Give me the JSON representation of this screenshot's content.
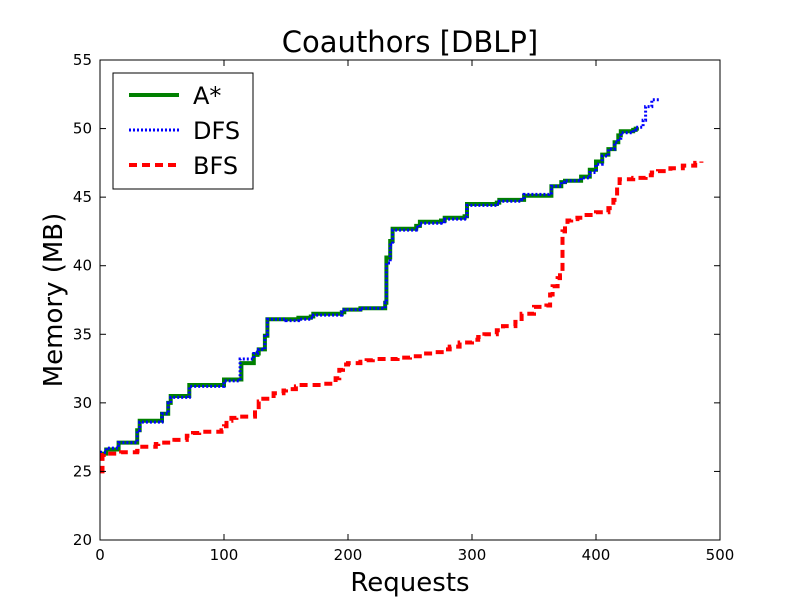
{
  "chart_data": {
    "type": "line",
    "title": "Coauthors [DBLP]",
    "xlabel": "Requests",
    "ylabel": "Memory (MB)",
    "xlim": [
      0,
      500
    ],
    "ylim": [
      20,
      55
    ],
    "xticks": [
      "0",
      "100",
      "200",
      "300",
      "400",
      "500"
    ],
    "yticks": [
      "20",
      "25",
      "30",
      "35",
      "40",
      "45",
      "50",
      "55"
    ],
    "grid": false,
    "legend_position": "top-left",
    "series": [
      {
        "name": "A*",
        "color": "#008000",
        "style": "solid",
        "x": [
          0,
          4,
          5,
          14,
          15,
          28,
          30,
          32,
          47,
          50,
          52,
          55,
          57,
          70,
          72,
          97,
          100,
          112,
          114,
          122,
          124,
          127,
          128,
          133,
          135,
          150,
          160,
          170,
          172,
          185,
          195,
          197,
          210,
          230,
          231,
          234,
          236,
          255,
          258,
          275,
          278,
          294,
          296,
          320,
          322,
          340,
          342,
          362,
          364,
          372,
          375,
          388,
          395,
          400,
          405,
          410,
          415,
          418,
          420,
          430,
          432,
          433
        ],
        "values": [
          26.3,
          26.3,
          26.6,
          26.6,
          27.1,
          27.1,
          28.0,
          28.7,
          28.7,
          29.2,
          29.2,
          30.0,
          30.5,
          30.5,
          31.3,
          31.3,
          31.7,
          31.7,
          32.9,
          32.9,
          33.5,
          33.6,
          33.9,
          34.9,
          36.1,
          36.1,
          36.2,
          36.3,
          36.5,
          36.5,
          36.6,
          36.8,
          36.9,
          37.3,
          40.6,
          41.8,
          42.7,
          42.9,
          43.2,
          43.3,
          43.5,
          43.6,
          44.5,
          44.6,
          44.8,
          44.8,
          45.1,
          45.1,
          45.8,
          46.1,
          46.2,
          46.5,
          47.0,
          47.6,
          48.1,
          48.5,
          49.0,
          49.5,
          49.8,
          49.9,
          50.0,
          50.1
        ]
      },
      {
        "name": "DFS",
        "color": "#0000ff",
        "style": "dotted",
        "x": [
          0,
          4,
          5,
          14,
          15,
          28,
          30,
          32,
          47,
          50,
          52,
          55,
          57,
          70,
          72,
          97,
          100,
          112,
          113,
          122,
          124,
          127,
          128,
          133,
          135,
          150,
          160,
          170,
          172,
          185,
          195,
          197,
          210,
          230,
          231,
          234,
          236,
          255,
          258,
          275,
          278,
          294,
          296,
          320,
          322,
          340,
          342,
          362,
          364,
          372,
          375,
          388,
          395,
          400,
          405,
          410,
          415,
          418,
          420,
          430,
          432,
          438,
          440,
          445,
          452
        ],
        "values": [
          26.4,
          26.4,
          26.7,
          26.7,
          27.1,
          27.1,
          28.0,
          28.6,
          28.6,
          29.2,
          29.2,
          30.0,
          30.4,
          30.4,
          31.2,
          31.2,
          31.6,
          31.6,
          33.2,
          33.2,
          33.6,
          33.7,
          33.9,
          35.0,
          36.1,
          36.0,
          36.1,
          36.2,
          36.4,
          36.4,
          36.6,
          36.8,
          36.9,
          37.3,
          40.2,
          41.5,
          42.6,
          42.8,
          43.1,
          43.2,
          43.4,
          43.6,
          44.4,
          44.5,
          44.7,
          44.8,
          45.2,
          45.3,
          45.8,
          46.1,
          46.2,
          46.4,
          46.8,
          47.4,
          48.0,
          48.5,
          49.0,
          49.3,
          49.7,
          49.9,
          50.1,
          50.6,
          51.6,
          52.1,
          52.1
        ]
      },
      {
        "name": "BFS",
        "color": "#ff0000",
        "style": "dashed",
        "x": [
          0,
          2,
          3,
          15,
          17,
          30,
          32,
          45,
          47,
          60,
          62,
          70,
          75,
          80,
          98,
          100,
          102,
          106,
          110,
          120,
          125,
          128,
          130,
          140,
          148,
          150,
          158,
          160,
          180,
          190,
          193,
          196,
          200,
          210,
          215,
          220,
          240,
          250,
          260,
          270,
          278,
          282,
          290,
          300,
          305,
          310,
          320,
          325,
          335,
          340,
          350,
          360,
          363,
          365,
          369,
          371,
          373,
          375,
          377,
          380,
          385,
          390,
          400,
          410,
          414,
          417,
          419,
          430,
          440,
          445,
          450,
          460,
          470,
          480,
          485
        ],
        "values": [
          25.0,
          26.2,
          26.3,
          26.3,
          26.4,
          26.5,
          26.8,
          27.0,
          27.1,
          27.3,
          27.3,
          27.6,
          27.8,
          27.9,
          28.0,
          28.3,
          28.7,
          28.9,
          29.0,
          29.0,
          29.5,
          30.1,
          30.3,
          30.7,
          30.9,
          31.0,
          31.2,
          31.3,
          31.4,
          31.8,
          32.4,
          32.8,
          32.9,
          33.0,
          33.1,
          33.2,
          33.3,
          33.4,
          33.6,
          33.7,
          33.9,
          34.1,
          34.4,
          34.6,
          34.8,
          35.0,
          35.3,
          35.6,
          35.9,
          36.5,
          37.0,
          37.1,
          37.9,
          38.5,
          39.1,
          39.3,
          42.5,
          43.0,
          43.3,
          43.4,
          43.5,
          43.7,
          43.9,
          44.2,
          44.8,
          45.8,
          46.3,
          46.4,
          46.6,
          46.8,
          46.9,
          47.1,
          47.3,
          47.5,
          47.6
        ]
      }
    ]
  }
}
